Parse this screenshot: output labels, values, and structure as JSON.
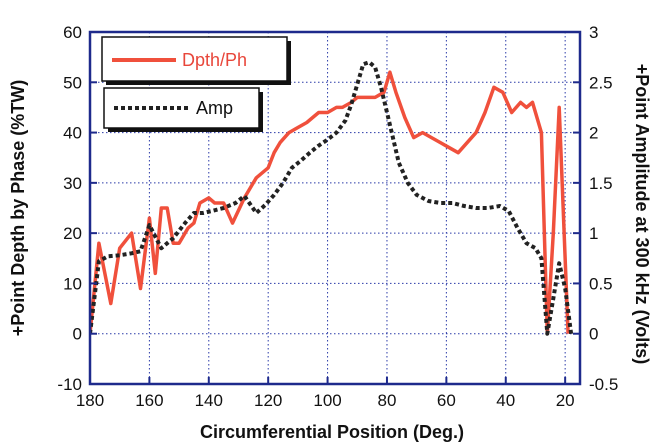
{
  "chart_data": {
    "type": "line",
    "xlabel": "Circumferential Position (Deg.)",
    "ylabel_left": "+Point Depth by Phase (%TW)",
    "ylabel_right": "+Point Amplitude at 300 kHz (Volts)",
    "xlim": [
      180,
      15
    ],
    "ylim_left": [
      -10,
      60
    ],
    "ylim_right": [
      -0.5,
      3
    ],
    "x_ticks": [
      "180",
      "160",
      "140",
      "120",
      "100",
      "80",
      "60",
      "40",
      "20"
    ],
    "y_left_ticks": [
      "-10",
      "0",
      "10",
      "20",
      "30",
      "40",
      "50",
      "60"
    ],
    "y_right_ticks": [
      "-0.5",
      "0",
      "0.5",
      "1",
      "1.5",
      "2",
      "2.5",
      "3"
    ],
    "grid": true,
    "colors": {
      "dpth": "#f0503c",
      "amp": "#222222",
      "axis": "#1e2a8c",
      "grid": "#2a3aa8"
    },
    "series": [
      {
        "name": "Dpth/Ph",
        "axis": "left",
        "style": "solid",
        "x": [
          180,
          177,
          173,
          170,
          166,
          163,
          160,
          158,
          156,
          154,
          152,
          150,
          147,
          145,
          143,
          140,
          138,
          135,
          132,
          128,
          124,
          120,
          118,
          116,
          113,
          110,
          107,
          105,
          103,
          100,
          97,
          95,
          92,
          90,
          87,
          84,
          81,
          79,
          77,
          74,
          71,
          68,
          65,
          62,
          59,
          56,
          53,
          50,
          47,
          44,
          41,
          38,
          35,
          33,
          31,
          28,
          26,
          24,
          22,
          19
        ],
        "values": [
          0,
          18,
          6,
          17,
          20,
          9,
          23,
          12,
          25,
          25,
          18,
          18,
          21,
          22,
          26,
          27,
          26,
          26,
          22,
          27,
          31,
          33,
          36,
          38,
          40,
          41,
          42,
          43,
          44,
          44,
          45,
          45,
          46,
          47,
          47,
          47,
          48,
          52,
          48,
          43,
          39,
          40,
          39,
          38,
          37,
          36,
          38,
          40,
          44,
          49,
          48,
          44,
          46,
          45,
          46,
          40,
          0,
          20,
          45,
          0
        ]
      },
      {
        "name": "Amp",
        "axis": "right",
        "style": "dashed",
        "x": [
          180,
          177,
          174,
          170,
          166,
          163,
          160,
          156,
          152,
          148,
          145,
          142,
          139,
          135,
          131,
          128,
          124,
          121,
          118,
          115,
          112,
          109,
          106,
          103,
          100,
          97,
          94,
          92,
          90,
          88,
          86,
          84,
          82,
          80,
          78,
          76,
          73,
          70,
          66,
          62,
          58,
          54,
          50,
          46,
          42,
          39,
          36,
          33,
          30,
          28,
          26,
          24,
          22,
          20,
          18
        ],
        "values": [
          0,
          0.72,
          0.77,
          0.78,
          0.8,
          0.82,
          1.08,
          0.85,
          0.95,
          1.1,
          1.2,
          1.2,
          1.22,
          1.25,
          1.3,
          1.37,
          1.2,
          1.28,
          1.38,
          1.5,
          1.65,
          1.72,
          1.8,
          1.87,
          1.93,
          2.0,
          2.12,
          2.28,
          2.48,
          2.68,
          2.7,
          2.65,
          2.45,
          2.2,
          1.95,
          1.7,
          1.5,
          1.38,
          1.32,
          1.3,
          1.3,
          1.27,
          1.25,
          1.25,
          1.27,
          1.22,
          1.05,
          0.9,
          0.85,
          0.75,
          0,
          0.35,
          0.7,
          0.45,
          0
        ]
      }
    ],
    "legend": [
      {
        "label": "Dpth/Ph",
        "series": "Dpth/Ph",
        "placement": "top-left"
      },
      {
        "label": "Amp",
        "series": "Amp",
        "placement": "upper-left"
      }
    ]
  }
}
